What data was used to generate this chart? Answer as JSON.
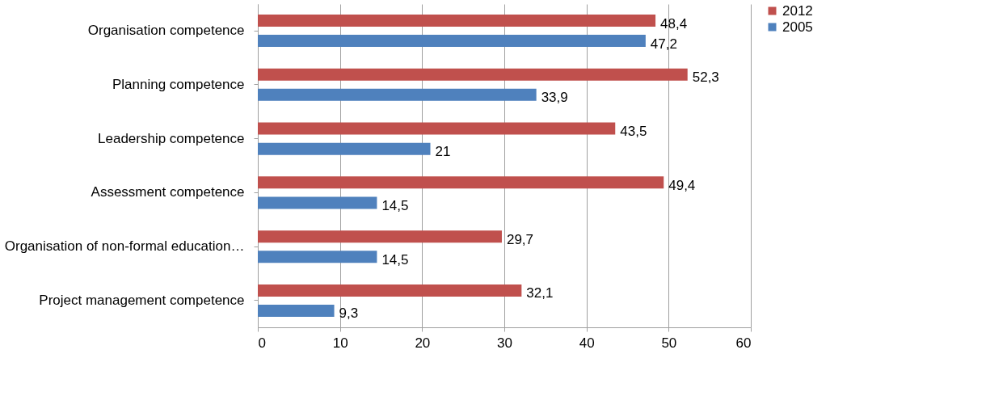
{
  "chart_data": {
    "type": "bar",
    "orientation": "horizontal",
    "categories": [
      "Organisation competence",
      "Planning competence",
      "Leadership competence",
      "Assessment competence",
      "Organisation of non-formal education…",
      "Project management competence"
    ],
    "series": [
      {
        "name": "2012",
        "color": "#c0504d",
        "values": [
          48.4,
          52.3,
          43.5,
          49.4,
          29.7,
          32.1
        ],
        "value_labels": [
          "48,4",
          "52,3",
          "43,5",
          "49,4",
          "29,7",
          "32,1"
        ]
      },
      {
        "name": "2005",
        "color": "#4f81bd",
        "values": [
          47.2,
          33.9,
          21,
          14.5,
          14.5,
          9.3
        ],
        "value_labels": [
          "47,2",
          "33,9",
          "21",
          "14,5",
          "14,5",
          "9,3"
        ]
      }
    ],
    "xlim": [
      0,
      60
    ],
    "xticks": [
      0,
      10,
      20,
      30,
      40,
      50,
      60
    ],
    "grid": "x",
    "legend": "right"
  }
}
